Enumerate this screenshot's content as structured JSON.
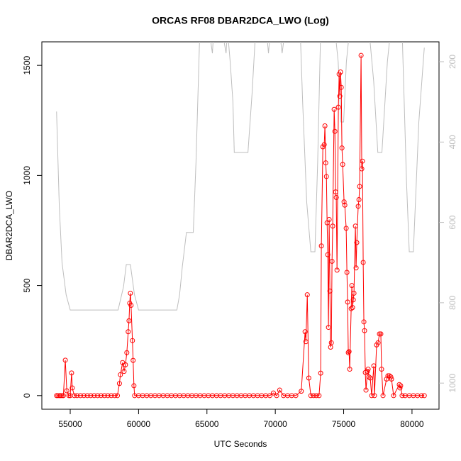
{
  "chart_data": {
    "type": "line",
    "title": "ORCAS RF08 DBAR2DCA_LWO (Log)",
    "x_label": "UTC Seconds",
    "y_label": "DBAR2DCA_LWO",
    "xlim": [
      52924,
      81976
    ],
    "xticks": [
      55000,
      60000,
      65000,
      70000,
      75000,
      80000
    ],
    "ylim": [
      -61.8,
      1606.8
    ],
    "yticks": [
      0,
      500,
      1000,
      1500
    ],
    "y2lim": [
      1065,
      150.6
    ],
    "y2ticks": [
      200,
      400,
      600,
      800,
      1000
    ],
    "series": [
      {
        "color": "#ff0000",
        "markers": true,
        "x": [
          54000,
          54100,
          54200,
          54300,
          54400,
          54500,
          54640,
          54750,
          54900,
          55000,
          55100,
          55150,
          55300,
          55500,
          55750,
          56000,
          56250,
          56500,
          56750,
          57000,
          57250,
          57500,
          57750,
          58000,
          58250,
          58450,
          58600,
          58670,
          58830,
          58940,
          59040,
          59140,
          59240,
          59300,
          59350,
          59400,
          59450,
          59550,
          59600,
          59660,
          59710,
          60000,
          60300,
          60600,
          60900,
          61200,
          61500,
          61800,
          62100,
          62400,
          62700,
          63000,
          63300,
          63600,
          63900,
          64200,
          64500,
          64800,
          65100,
          65400,
          65700,
          66000,
          66300,
          66600,
          66900,
          67200,
          67500,
          67800,
          68100,
          68400,
          68700,
          69000,
          69300,
          69600,
          69860,
          70100,
          70320,
          70600,
          70900,
          71200,
          71500,
          71900,
          72180,
          72240,
          72340,
          72450,
          72600,
          72800,
          73000,
          73200,
          73320,
          73370,
          73480,
          73580,
          73630,
          73690,
          73740,
          73790,
          73840,
          73890,
          73940,
          73995,
          74045,
          74100,
          74150,
          74200,
          74305,
          74360,
          74410,
          74460,
          74515,
          74615,
          74670,
          74720,
          74770,
          74825,
          74875,
          74930,
          75030,
          75085,
          75185,
          75240,
          75290,
          75340,
          75395,
          75445,
          75550,
          75600,
          75650,
          75705,
          75755,
          75860,
          75910,
          75960,
          76065,
          76120,
          76170,
          76275,
          76325,
          76375,
          76430,
          76480,
          76530,
          76585,
          76635,
          76740,
          76790,
          76845,
          76945,
          77050,
          77205,
          77255,
          77410,
          77515,
          77620,
          77720,
          77775,
          77880,
          78140,
          78240,
          78345,
          78450,
          78500,
          78655,
          79070,
          79120,
          79170,
          79275,
          79500,
          79800,
          80100,
          80400,
          80700,
          80900
        ],
        "values": [
          0,
          0,
          0,
          0,
          0,
          0,
          161,
          22,
          0,
          0,
          103,
          35,
          0,
          0,
          0,
          0,
          0,
          0,
          0,
          0,
          0,
          0,
          0,
          0,
          0,
          0,
          55,
          95,
          150,
          110,
          140,
          195,
          290,
          340,
          420,
          465,
          410,
          250,
          160,
          45,
          0,
          0,
          0,
          0,
          0,
          0,
          0,
          0,
          0,
          0,
          0,
          0,
          0,
          0,
          0,
          0,
          0,
          0,
          0,
          0,
          0,
          0,
          0,
          0,
          0,
          0,
          0,
          0,
          0,
          0,
          0,
          0,
          0,
          0,
          12,
          0,
          25,
          0,
          0,
          0,
          0,
          20,
          290,
          245,
          458,
          80,
          0,
          0,
          0,
          0,
          102,
          680,
          1130,
          1140,
          1225,
          1057,
          995,
          785,
          640,
          310,
          800,
          475,
          220,
          240,
          610,
          770,
          1300,
          1200,
          925,
          900,
          570,
          1310,
          1460,
          1360,
          1470,
          1400,
          1125,
          1050,
          880,
          865,
          760,
          560,
          425,
          195,
          200,
          120,
          395,
          500,
          400,
          435,
          465,
          770,
          580,
          695,
          860,
          890,
          950,
          1545,
          1030,
          1065,
          605,
          335,
          295,
          105,
          25,
          110,
          120,
          85,
          80,
          0,
          135,
          0,
          230,
          240,
          280,
          280,
          120,
          0,
          75,
          90,
          90,
          85,
          75,
          0,
          50,
          35,
          45,
          0,
          0,
          0,
          0,
          0,
          0,
          0
        ]
      },
      {
        "color": "#bebebe",
        "axis": "y2",
        "markers": false,
        "x": [
          54000,
          54200,
          54400,
          54700,
          55000,
          58500,
          58900,
          59100,
          59400,
          59700,
          60000,
          62800,
          63000,
          63200,
          63500,
          64000,
          64200,
          64500,
          65000,
          65200,
          65400,
          65500,
          65800,
          66200,
          66400,
          66500,
          66700,
          66900,
          67000,
          68000,
          68300,
          68600,
          69300,
          69500,
          69700,
          70300,
          70500,
          70800,
          71800,
          72000,
          72300,
          72600,
          72900,
          73100,
          73300,
          73500,
          74300,
          74600,
          74800,
          75000,
          75200,
          75500,
          76800,
          77200,
          77500,
          77800,
          78200,
          78500,
          79300,
          79600,
          79800,
          80100,
          80500,
          80900
        ],
        "values": [
          324,
          560,
          700,
          780,
          818,
          818,
          760,
          705,
          705,
          780,
          818,
          818,
          780,
          710,
          625,
          625,
          450,
          100,
          100,
          130,
          179,
          120,
          100,
          140,
          179,
          120,
          200,
          300,
          426,
          426,
          280,
          100,
          100,
          179,
          100,
          120,
          179,
          100,
          100,
          300,
          550,
          673,
          673,
          450,
          150,
          100,
          100,
          200,
          350,
          350,
          200,
          100,
          100,
          250,
          426,
          426,
          200,
          100,
          150,
          500,
          673,
          673,
          350,
          165
        ]
      }
    ]
  }
}
